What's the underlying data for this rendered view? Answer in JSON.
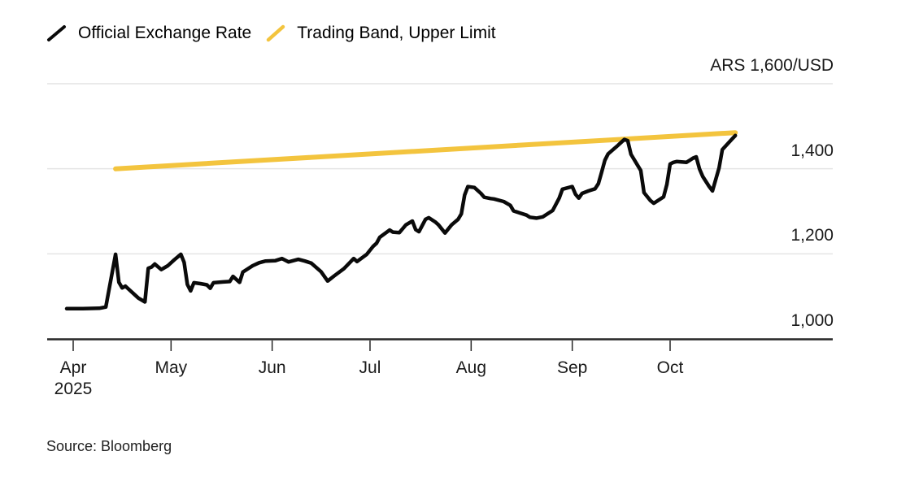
{
  "source": {
    "text": "Source: Bloomberg"
  },
  "colors": {
    "official_line": "#0a0a0a",
    "band_line": "#F3C43E",
    "gridline": "#e4e4e4",
    "axis": "#262626",
    "text": "#111111"
  },
  "chart_data": {
    "type": "line",
    "y_axis": {
      "min": 1000,
      "max": 1600,
      "grid": true,
      "ticks": [
        {
          "value": 1000,
          "label": "1,000"
        },
        {
          "value": 1200,
          "label": "1,200"
        },
        {
          "value": 1400,
          "label": "1,400"
        },
        {
          "value": 1600,
          "label": "ARS 1,600/USD"
        }
      ]
    },
    "x_axis": {
      "ticks": [
        {
          "date": "2025-04-01",
          "label": "Apr",
          "sublabel": "2025"
        },
        {
          "date": "2025-05-01",
          "label": "May",
          "sublabel": ""
        },
        {
          "date": "2025-06-01",
          "label": "Jun",
          "sublabel": ""
        },
        {
          "date": "2025-07-01",
          "label": "Jul",
          "sublabel": ""
        },
        {
          "date": "2025-08-01",
          "label": "Aug",
          "sublabel": ""
        },
        {
          "date": "2025-09-01",
          "label": "Sep",
          "sublabel": ""
        },
        {
          "date": "2025-10-01",
          "label": "Oct",
          "sublabel": ""
        }
      ]
    },
    "legend_position": "top-left",
    "series": [
      {
        "name": "Official Exchange Rate",
        "color": "#0a0a0a",
        "width": 4.5,
        "points": [
          [
            "2025-03-30",
            1071
          ],
          [
            "2025-04-04",
            1071
          ],
          [
            "2025-04-09",
            1072
          ],
          [
            "2025-04-11",
            1075
          ],
          [
            "2025-04-14",
            1199
          ],
          [
            "2025-04-15",
            1133
          ],
          [
            "2025-04-16",
            1120
          ],
          [
            "2025-04-17",
            1124
          ],
          [
            "2025-04-21",
            1096
          ],
          [
            "2025-04-23",
            1087
          ],
          [
            "2025-04-24",
            1166
          ],
          [
            "2025-04-25",
            1169
          ],
          [
            "2025-04-26",
            1176
          ],
          [
            "2025-04-28",
            1163
          ],
          [
            "2025-04-30",
            1172
          ],
          [
            "2025-05-02",
            1186
          ],
          [
            "2025-05-04",
            1199
          ],
          [
            "2025-05-05",
            1180
          ],
          [
            "2025-05-06",
            1128
          ],
          [
            "2025-05-07",
            1113
          ],
          [
            "2025-05-08",
            1132
          ],
          [
            "2025-05-10",
            1130
          ],
          [
            "2025-05-12",
            1127
          ],
          [
            "2025-05-13",
            1119
          ],
          [
            "2025-05-14",
            1132
          ],
          [
            "2025-05-17",
            1134
          ],
          [
            "2025-05-19",
            1135
          ],
          [
            "2025-05-20",
            1147
          ],
          [
            "2025-05-22",
            1133
          ],
          [
            "2025-05-23",
            1157
          ],
          [
            "2025-05-26",
            1172
          ],
          [
            "2025-05-28",
            1179
          ],
          [
            "2025-05-30",
            1183
          ],
          [
            "2025-06-02",
            1184
          ],
          [
            "2025-06-04",
            1189
          ],
          [
            "2025-06-06",
            1181
          ],
          [
            "2025-06-09",
            1187
          ],
          [
            "2025-06-11",
            1183
          ],
          [
            "2025-06-13",
            1178
          ],
          [
            "2025-06-16",
            1158
          ],
          [
            "2025-06-18",
            1136
          ],
          [
            "2025-06-20",
            1148
          ],
          [
            "2025-06-23",
            1165
          ],
          [
            "2025-06-25",
            1181
          ],
          [
            "2025-06-26",
            1189
          ],
          [
            "2025-06-27",
            1182
          ],
          [
            "2025-06-30",
            1199
          ],
          [
            "2025-07-02",
            1218
          ],
          [
            "2025-07-03",
            1225
          ],
          [
            "2025-07-04",
            1239
          ],
          [
            "2025-07-07",
            1256
          ],
          [
            "2025-07-08",
            1251
          ],
          [
            "2025-07-10",
            1250
          ],
          [
            "2025-07-12",
            1268
          ],
          [
            "2025-07-14",
            1277
          ],
          [
            "2025-07-15",
            1257
          ],
          [
            "2025-07-16",
            1252
          ],
          [
            "2025-07-18",
            1281
          ],
          [
            "2025-07-19",
            1285
          ],
          [
            "2025-07-21",
            1275
          ],
          [
            "2025-07-22",
            1268
          ],
          [
            "2025-07-24",
            1249
          ],
          [
            "2025-07-26",
            1268
          ],
          [
            "2025-07-28",
            1281
          ],
          [
            "2025-07-29",
            1294
          ],
          [
            "2025-07-30",
            1338
          ],
          [
            "2025-07-31",
            1358
          ],
          [
            "2025-08-02",
            1356
          ],
          [
            "2025-08-04",
            1342
          ],
          [
            "2025-08-05",
            1333
          ],
          [
            "2025-08-07",
            1330
          ],
          [
            "2025-08-08",
            1329
          ],
          [
            "2025-08-11",
            1323
          ],
          [
            "2025-08-13",
            1314
          ],
          [
            "2025-08-14",
            1301
          ],
          [
            "2025-08-16",
            1296
          ],
          [
            "2025-08-18",
            1291
          ],
          [
            "2025-08-19",
            1286
          ],
          [
            "2025-08-21",
            1284
          ],
          [
            "2025-08-23",
            1287
          ],
          [
            "2025-08-26",
            1302
          ],
          [
            "2025-08-28",
            1331
          ],
          [
            "2025-08-29",
            1352
          ],
          [
            "2025-09-01",
            1358
          ],
          [
            "2025-09-02",
            1340
          ],
          [
            "2025-09-03",
            1331
          ],
          [
            "2025-09-04",
            1342
          ],
          [
            "2025-09-06",
            1348
          ],
          [
            "2025-09-08",
            1353
          ],
          [
            "2025-09-09",
            1365
          ],
          [
            "2025-09-10",
            1392
          ],
          [
            "2025-09-11",
            1420
          ],
          [
            "2025-09-12",
            1435
          ],
          [
            "2025-09-15",
            1455
          ],
          [
            "2025-09-16",
            1462
          ],
          [
            "2025-09-17",
            1469
          ],
          [
            "2025-09-18",
            1466
          ],
          [
            "2025-09-19",
            1434
          ],
          [
            "2025-09-22",
            1396
          ],
          [
            "2025-09-23",
            1344
          ],
          [
            "2025-09-25",
            1325
          ],
          [
            "2025-09-26",
            1319
          ],
          [
            "2025-09-29",
            1334
          ],
          [
            "2025-09-30",
            1363
          ],
          [
            "2025-10-01",
            1411
          ],
          [
            "2025-10-02",
            1415
          ],
          [
            "2025-10-03",
            1417
          ],
          [
            "2025-10-06",
            1415
          ],
          [
            "2025-10-07",
            1420
          ],
          [
            "2025-10-08",
            1425
          ],
          [
            "2025-10-09",
            1428
          ],
          [
            "2025-10-10",
            1400
          ],
          [
            "2025-10-11",
            1382
          ],
          [
            "2025-10-13",
            1358
          ],
          [
            "2025-10-14",
            1348
          ],
          [
            "2025-10-16",
            1402
          ],
          [
            "2025-10-17",
            1445
          ],
          [
            "2025-10-20",
            1470
          ],
          [
            "2025-10-21",
            1478
          ]
        ]
      },
      {
        "name": "Trading Band, Upper Limit",
        "color": "#F3C43E",
        "width": 6,
        "points": [
          [
            "2025-04-14",
            1400
          ],
          [
            "2025-10-21",
            1485
          ]
        ]
      }
    ]
  }
}
